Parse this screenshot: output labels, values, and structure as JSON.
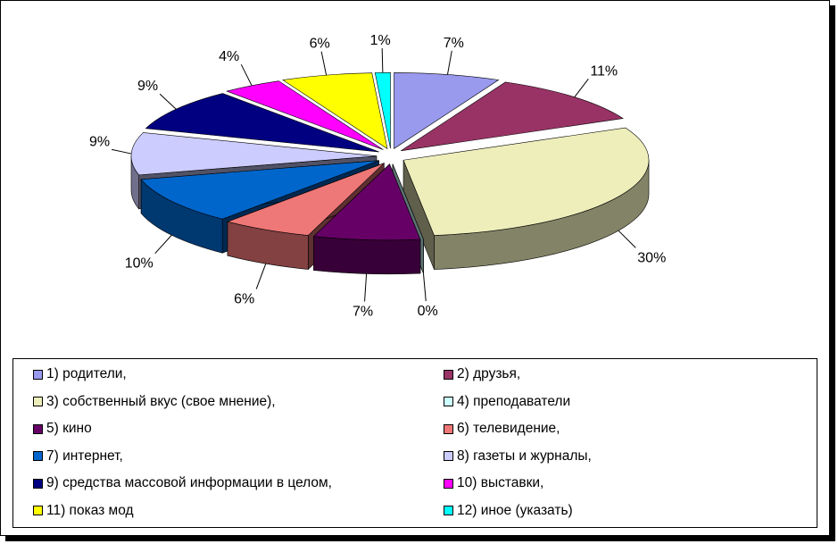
{
  "chart_data": {
    "type": "pie",
    "categories": [
      "1) родители,",
      "2) друзья,",
      "3) собственный вкус (свое мнение),",
      "4) преподаватели",
      "5) кино",
      "6)  телевидение,",
      "7) интернет,",
      "8) газеты и журналы,",
      "9) средства массовой информации в целом,",
      "10) выставки,",
      "11) показ мод",
      "12) иное (указать)"
    ],
    "values": [
      7,
      11,
      30,
      0,
      7,
      6,
      10,
      9,
      9,
      4,
      6,
      1
    ],
    "data_labels": [
      "7%",
      "11%",
      "30%",
      "0%",
      "7%",
      "6%",
      "10%",
      "9%",
      "9%",
      "4%",
      "6%",
      "1%"
    ],
    "colors": [
      "#9999ee",
      "#993366",
      "#eeeebb",
      "#ccffff",
      "#660066",
      "#ee7777",
      "#0066cc",
      "#ccccff",
      "#000080",
      "#ff00ff",
      "#ffff00",
      "#00ffff"
    ],
    "legend_placement": "bottom",
    "exploded": true,
    "three_d": true
  }
}
